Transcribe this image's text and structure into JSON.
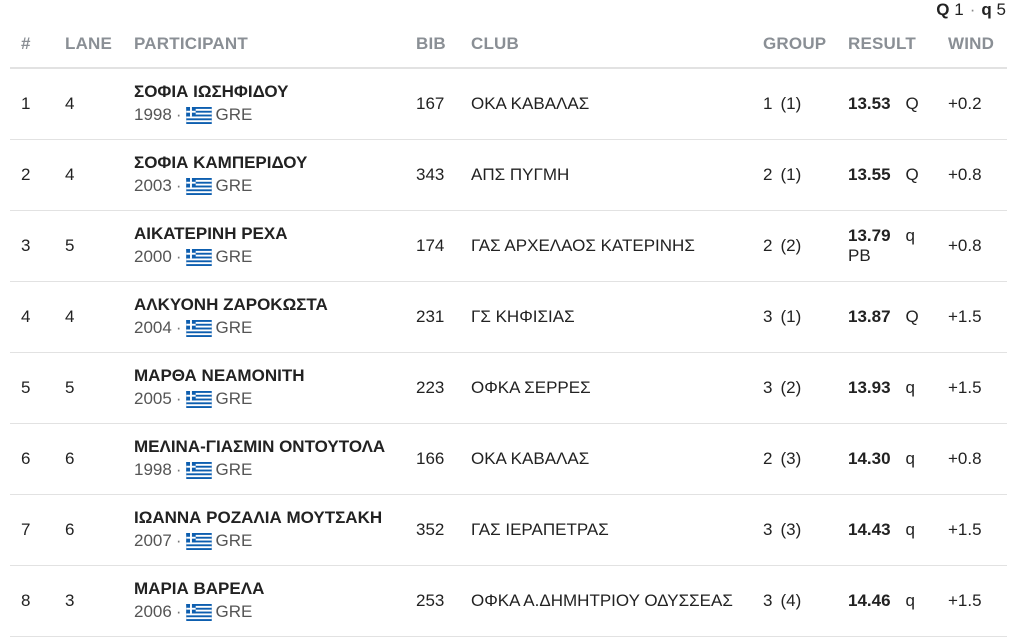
{
  "legend": {
    "q_big_label": "Q",
    "q_big_count": "1",
    "separator": "·",
    "q_small_label": "q",
    "q_small_count": "5"
  },
  "columns": {
    "rank": "#",
    "lane": "LANE",
    "participant": "PARTICIPANT",
    "bib": "BIB",
    "club": "CLUB",
    "group": "GROUP",
    "result": "RESULT",
    "wind": "WIND"
  },
  "flag_colors": {
    "blue": "#0d5eaf",
    "white": "#ffffff"
  },
  "rows": [
    {
      "rank": "1",
      "lane": "4",
      "name": "ΣΟΦΙΑ ΙΩΣΗΦΙΔΟΥ",
      "year": "1998",
      "dot": "·",
      "country": "GRE",
      "bib": "167",
      "club": "ΟΚΑ ΚΑΒΑΛΑΣ",
      "group": "1",
      "group_place": "(1)",
      "result": "13.53",
      "qual": "Q",
      "note": "",
      "wind": "+0.2"
    },
    {
      "rank": "2",
      "lane": "4",
      "name": "ΣΟΦΙΑ ΚΑΜΠΕΡΙΔΟΥ",
      "year": "2003",
      "dot": "·",
      "country": "GRE",
      "bib": "343",
      "club": "ΑΠΣ ΠΥΓΜΗ",
      "group": "2",
      "group_place": "(1)",
      "result": "13.55",
      "qual": "Q",
      "note": "",
      "wind": "+0.8"
    },
    {
      "rank": "3",
      "lane": "5",
      "name": "ΑΙΚΑΤΕΡΙΝΗ ΡΕΧΑ",
      "year": "2000",
      "dot": "·",
      "country": "GRE",
      "bib": "174",
      "club": "ΓΑΣ ΑΡΧΕΛΑΟΣ ΚΑΤΕΡΙΝΗΣ",
      "group": "2",
      "group_place": "(2)",
      "result": "13.79",
      "qual": "q",
      "note": "PB",
      "wind": "+0.8"
    },
    {
      "rank": "4",
      "lane": "4",
      "name": "ΑΛΚΥΟΝΗ ΖΑΡΟΚΩΣΤΑ",
      "year": "2004",
      "dot": "·",
      "country": "GRE",
      "bib": "231",
      "club": "ΓΣ ΚΗΦΙΣΙΑΣ",
      "group": "3",
      "group_place": "(1)",
      "result": "13.87",
      "qual": "Q",
      "note": "",
      "wind": "+1.5"
    },
    {
      "rank": "5",
      "lane": "5",
      "name": "ΜΑΡΘΑ ΝΕΑΜΟΝΙΤΗ",
      "year": "2005",
      "dot": "·",
      "country": "GRE",
      "bib": "223",
      "club": "ΟΦΚΑ ΣΕΡΡΕΣ",
      "group": "3",
      "group_place": "(2)",
      "result": "13.93",
      "qual": "q",
      "note": "",
      "wind": "+1.5"
    },
    {
      "rank": "6",
      "lane": "6",
      "name": "ΜΕΛΙΝΑ-ΓΙΑΣΜΙΝ ΟΝΤΟΥΤΟΛΑ",
      "year": "1998",
      "dot": "·",
      "country": "GRE",
      "bib": "166",
      "club": "ΟΚΑ ΚΑΒΑΛΑΣ",
      "group": "2",
      "group_place": "(3)",
      "result": "14.30",
      "qual": "q",
      "note": "",
      "wind": "+0.8"
    },
    {
      "rank": "7",
      "lane": "6",
      "name": "ΙΩΑΝΝΑ ΡΟΖΑΛΙΑ ΜΟΥΤΣΑΚΗ",
      "year": "2007",
      "dot": "·",
      "country": "GRE",
      "bib": "352",
      "club": "ΓΑΣ ΙΕΡΑΠΕΤΡΑΣ",
      "group": "3",
      "group_place": "(3)",
      "result": "14.43",
      "qual": "q",
      "note": "",
      "wind": "+1.5"
    },
    {
      "rank": "8",
      "lane": "3",
      "name": "ΜΑΡΙΑ ΒΑΡΕΛΑ",
      "year": "2006",
      "dot": "·",
      "country": "GRE",
      "bib": "253",
      "club": "ΟΦΚΑ Α.ΔΗΜΗΤΡΙΟΥ ΟΔΥΣΣΕΑΣ",
      "group": "3",
      "group_place": "(4)",
      "result": "14.46",
      "qual": "q",
      "note": "",
      "wind": "+1.5"
    }
  ]
}
